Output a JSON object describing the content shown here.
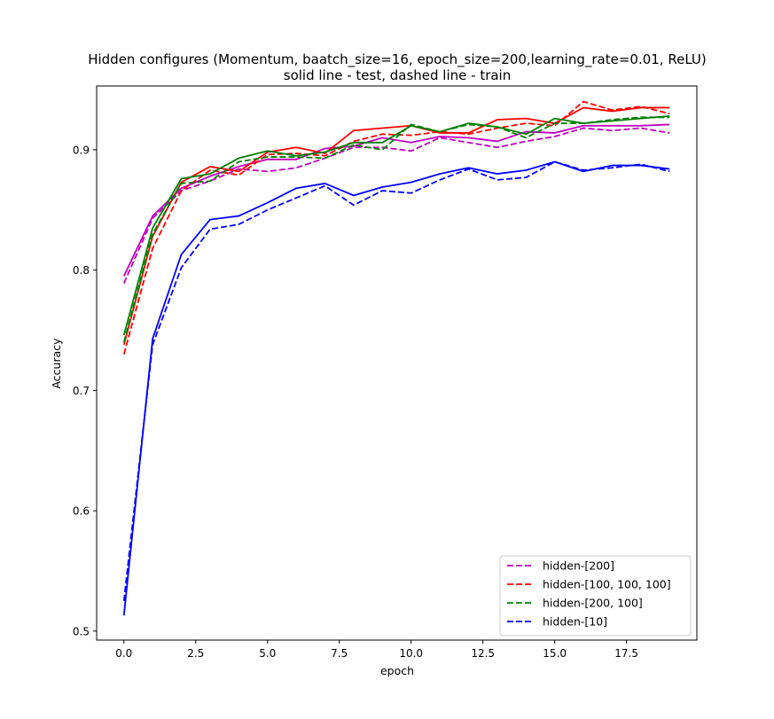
{
  "chart_data": {
    "type": "line",
    "title": "Hidden configures (Momentum, baatch_size=16, epoch_size=200,learning_rate=0.01, ReLU)",
    "subtitle": "solid line - test, dashed line - train",
    "xlabel": "epoch",
    "ylabel": "Accuracy",
    "xlim": [
      -0.95,
      19.95
    ],
    "ylim": [
      0.4925,
      0.953
    ],
    "xticks": [
      0.0,
      2.5,
      5.0,
      7.5,
      10.0,
      12.5,
      15.0,
      17.5
    ],
    "xtick_labels": [
      "0.0",
      "2.5",
      "5.0",
      "7.5",
      "10.0",
      "12.5",
      "15.0",
      "17.5"
    ],
    "yticks": [
      0.5,
      0.6,
      0.7,
      0.8,
      0.9
    ],
    "ytick_labels": [
      "0.5",
      "0.6",
      "0.7",
      "0.8",
      "0.9"
    ],
    "grid": false,
    "legend_position": "lower-right",
    "x": [
      0,
      1,
      2,
      3,
      4,
      5,
      6,
      7,
      8,
      9,
      10,
      11,
      12,
      13,
      14,
      15,
      16,
      17,
      18,
      19
    ],
    "series": [
      {
        "name": "hidden-[200]",
        "color": "#bf00bf",
        "train": [
          0.789,
          0.843,
          0.866,
          0.874,
          0.884,
          0.882,
          0.885,
          0.893,
          0.902,
          0.902,
          0.899,
          0.91,
          0.906,
          0.902,
          0.907,
          0.911,
          0.918,
          0.916,
          0.918,
          0.914
        ],
        "test": [
          0.795,
          0.845,
          0.868,
          0.878,
          0.886,
          0.892,
          0.892,
          0.901,
          0.903,
          0.91,
          0.906,
          0.911,
          0.91,
          0.907,
          0.915,
          0.914,
          0.92,
          0.92,
          0.92,
          0.921
        ]
      },
      {
        "name": "hidden-[100, 100, 100]",
        "color": "#ff0000",
        "train": [
          0.73,
          0.818,
          0.866,
          0.883,
          0.879,
          0.896,
          0.897,
          0.895,
          0.907,
          0.913,
          0.912,
          0.915,
          0.913,
          0.918,
          0.922,
          0.92,
          0.94,
          0.933,
          0.936,
          0.93
        ],
        "test": [
          0.738,
          0.828,
          0.873,
          0.886,
          0.882,
          0.898,
          0.902,
          0.897,
          0.916,
          0.918,
          0.92,
          0.914,
          0.914,
          0.925,
          0.926,
          0.922,
          0.935,
          0.932,
          0.935,
          0.935
        ]
      },
      {
        "name": "hidden-[200, 100]",
        "color": "#008000",
        "train": [
          0.74,
          0.83,
          0.872,
          0.874,
          0.89,
          0.894,
          0.894,
          0.893,
          0.904,
          0.9,
          0.921,
          0.915,
          0.921,
          0.919,
          0.91,
          0.922,
          0.922,
          0.925,
          0.927,
          0.927
        ],
        "test": [
          0.746,
          0.835,
          0.876,
          0.88,
          0.893,
          0.899,
          0.895,
          0.898,
          0.906,
          0.906,
          0.92,
          0.915,
          0.922,
          0.919,
          0.913,
          0.926,
          0.922,
          0.924,
          0.926,
          0.928
        ]
      },
      {
        "name": "hidden-[10]",
        "color": "#0000ff",
        "train": [
          0.525,
          0.738,
          0.802,
          0.834,
          0.838,
          0.85,
          0.86,
          0.87,
          0.854,
          0.866,
          0.864,
          0.875,
          0.884,
          0.875,
          0.877,
          0.89,
          0.883,
          0.885,
          0.888,
          0.882
        ],
        "test": [
          0.513,
          0.743,
          0.813,
          0.842,
          0.845,
          0.856,
          0.868,
          0.872,
          0.862,
          0.869,
          0.873,
          0.88,
          0.885,
          0.88,
          0.883,
          0.89,
          0.882,
          0.887,
          0.887,
          0.884
        ]
      }
    ]
  }
}
